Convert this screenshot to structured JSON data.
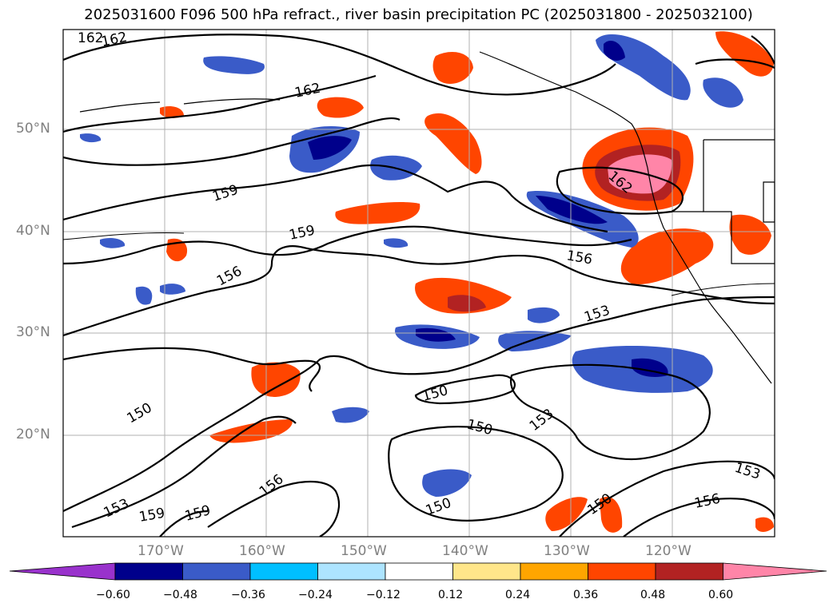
{
  "title": "2025031600 F096 500 hPa refract., river basin precipitation PC (2025031800 - 2025032100)",
  "lat_labels": [
    "50°N",
    "40°N",
    "30°N",
    "20°N"
  ],
  "lon_labels": [
    "170°W",
    "160°W",
    "150°W",
    "140°W",
    "130°W",
    "120°W"
  ],
  "contour_labels": [
    "162",
    "162",
    "162",
    "162",
    "159",
    "159",
    "159",
    "159",
    "156",
    "156",
    "156",
    "156",
    "153",
    "153",
    "153",
    "153",
    "150",
    "150",
    "150",
    "150",
    "150"
  ],
  "colorbar": {
    "ticks": [
      "−0.60",
      "−0.48",
      "−0.36",
      "−0.24",
      "−0.12",
      "0.12",
      "0.24",
      "0.36",
      "0.48",
      "0.60"
    ],
    "colors": [
      "#9932cc",
      "#00008b",
      "#3a5bc8",
      "#00bfff",
      "#ade4ff",
      "#ffffff",
      "#ffe68a",
      "#ffa500",
      "#ff4500",
      "#b22222",
      "#ff85a8"
    ]
  }
}
